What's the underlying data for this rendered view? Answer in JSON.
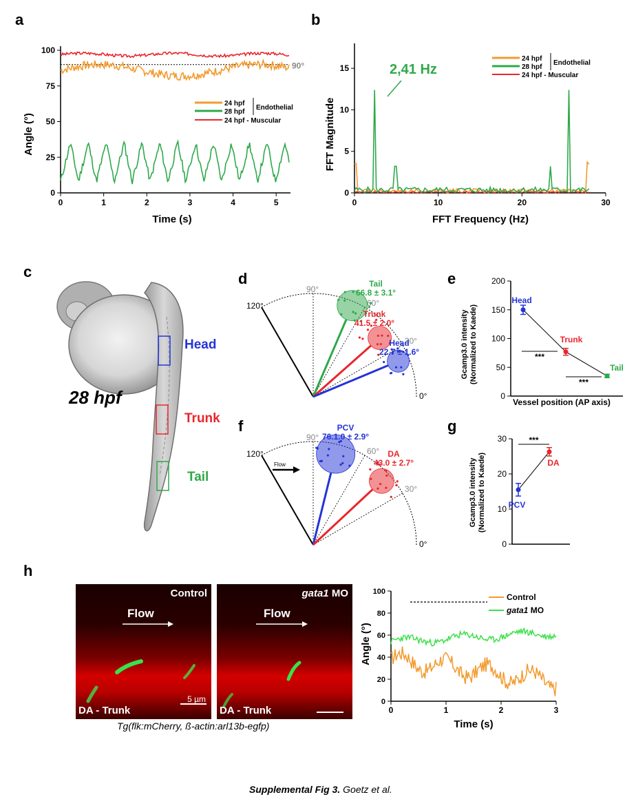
{
  "panels": {
    "a": "a",
    "b": "b",
    "c": "c",
    "d": "d",
    "e": "e",
    "f": "f",
    "g": "g",
    "h": "h"
  },
  "colors": {
    "orange": "#f39a2e",
    "green": "#2fa84a",
    "red": "#e8262c",
    "blue": "#2433d6",
    "gray": "#888888"
  },
  "chart_data": [
    {
      "id": "a",
      "type": "line",
      "xlabel": "Time (s)",
      "ylabel": "Angle (°)",
      "xlim": [
        0,
        5.3
      ],
      "ylim": [
        0,
        100
      ],
      "xticks": [
        "0",
        "1",
        "2",
        "3",
        "4",
        "5"
      ],
      "yticks": [
        "0",
        "25",
        "50",
        "75",
        "100"
      ],
      "reference_line": {
        "value": 90,
        "label": "90°"
      },
      "legend": {
        "entries": [
          "24 hpf",
          "28 hpf",
          "24 hpf - Muscular"
        ],
        "group_label": "Endothelial"
      },
      "series": [
        {
          "name": "24 hpf",
          "color": "orange",
          "baseline": 86,
          "amplitude": 4,
          "noise": 3
        },
        {
          "name": "28 hpf",
          "color": "green",
          "oscillation_hz": 2.41,
          "min": 8,
          "max": 35
        },
        {
          "name": "24 hpf - Muscular",
          "color": "red",
          "baseline": 97,
          "amplitude": 1,
          "noise": 1
        }
      ]
    },
    {
      "id": "b",
      "type": "line",
      "xlabel": "FFT Frequency (Hz)",
      "ylabel": "FFT Magnitude",
      "xlim": [
        0,
        30
      ],
      "ylim": [
        0,
        18
      ],
      "xticks": [
        "0",
        "10",
        "20",
        "30"
      ],
      "yticks": [
        "0",
        "5",
        "10",
        "15"
      ],
      "annotation": "2,41 Hz",
      "legend": {
        "entries": [
          "24 hpf",
          "28 hpf",
          "24 hpf - Muscular"
        ],
        "group_label": "Endothelial"
      },
      "peaks": [
        {
          "x": 2.41,
          "y": 12.4
        },
        {
          "x": 4.9,
          "y": 3.2
        },
        {
          "x": 23.4,
          "y": 3.2
        },
        {
          "x": 25.6,
          "y": 12.4
        }
      ]
    },
    {
      "id": "d",
      "type": "scatter",
      "angle_ticks": [
        "120°",
        "90°",
        "60°",
        "30°",
        "0°"
      ],
      "groups": [
        {
          "name": "Tail",
          "value": "66.8 ± 3.1°",
          "angle": 66.8,
          "color": "green"
        },
        {
          "name": "Trunk",
          "value": "41.5 ± 2.0°",
          "angle": 41.5,
          "color": "red"
        },
        {
          "name": "Head",
          "value": "22.7 ± 1.6°",
          "angle": 22.7,
          "color": "blue"
        }
      ]
    },
    {
      "id": "e",
      "type": "line",
      "xlabel": "Vessel position (AP axis)",
      "ylabel": "Gcamp3.0 intensity (Normalized to Kaede)",
      "ylabel_lines": [
        "Gcamp3.0 intensity",
        "(Normalized to Kaede)"
      ],
      "ylim": [
        0,
        200
      ],
      "yticks": [
        "0",
        "50",
        "100",
        "150",
        "200"
      ],
      "categories": [
        "Head",
        "Trunk",
        "Tail"
      ],
      "values": [
        150,
        77,
        35
      ],
      "errors": [
        8,
        6,
        3
      ],
      "significance": [
        "***",
        "***"
      ]
    },
    {
      "id": "f",
      "type": "scatter",
      "angle_ticks": [
        "120°",
        "90°",
        "60°",
        "30°",
        "0°"
      ],
      "flow_label": "Flow",
      "groups": [
        {
          "name": "PCV",
          "value": "76.1.0 ± 2.9°",
          "angle": 76.1,
          "color": "blue"
        },
        {
          "name": "DA",
          "value": "43.0 ± 2.7°",
          "angle": 43.0,
          "color": "red"
        }
      ]
    },
    {
      "id": "g",
      "type": "line",
      "ylabel": "Gcamp3.0 intensity (Normalized to Kaede)",
      "ylabel_lines": [
        "Gcamp3.0 intensity",
        "(Normalized to Kaede)"
      ],
      "ylim": [
        0,
        30
      ],
      "yticks": [
        "0",
        "10",
        "20",
        "30"
      ],
      "categories": [
        "PCV",
        "DA"
      ],
      "values": [
        15.5,
        26.3
      ],
      "errors": [
        1.8,
        1.2
      ],
      "significance": [
        "***"
      ]
    },
    {
      "id": "h",
      "type": "line",
      "xlabel": "Time (s)",
      "ylabel": "Angle (°)",
      "xlim": [
        0,
        3
      ],
      "ylim": [
        0,
        100
      ],
      "xticks": [
        "0",
        "1",
        "2",
        "3"
      ],
      "yticks": [
        "0",
        "20",
        "40",
        "60",
        "80",
        "100"
      ],
      "reference_line": {
        "value": 90
      },
      "series": [
        {
          "name": "Control",
          "color": "orange",
          "start": 38,
          "end": 18
        },
        {
          "name": "gata1 MO",
          "color": "green",
          "start": 54,
          "end": 62
        }
      ]
    }
  ],
  "embryo": {
    "stage_label": "28 hpf",
    "regions": [
      "Head",
      "Trunk",
      "Tail"
    ]
  },
  "micrographs": {
    "left_title": "Control",
    "right_title": "gata1 MO",
    "right_title_italic": "gata1",
    "right_title_rest": " MO",
    "flow": "Flow",
    "region": "DA - Trunk",
    "scalebar": "5 µm",
    "genotype": "Tg(flk:mCherry, ß-actin:arl13b-egfp)"
  },
  "footer": {
    "title": "Supplemental Fig 3.",
    "authors": "Goetz et al."
  }
}
